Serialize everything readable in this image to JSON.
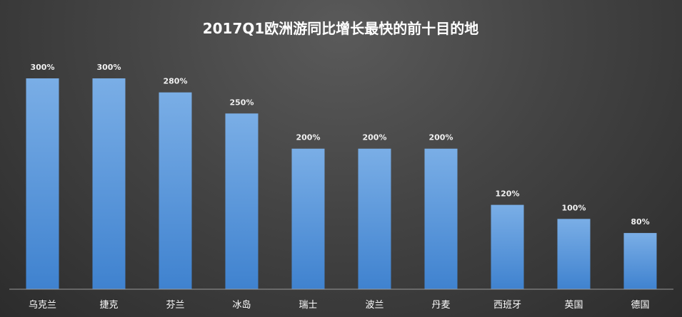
{
  "chart_data": {
    "type": "bar",
    "title": "2017Q1欧洲游同比增长最快的前十目的地",
    "categories": [
      "乌克兰",
      "捷克",
      "芬兰",
      "冰岛",
      "瑞士",
      "波兰",
      "丹麦",
      "西班牙",
      "英国",
      "德国"
    ],
    "values": [
      300,
      300,
      280,
      250,
      200,
      200,
      200,
      120,
      100,
      80
    ],
    "value_labels": [
      "300%",
      "300%",
      "280%",
      "250%",
      "200%",
      "200%",
      "200%",
      "120%",
      "100%",
      "80%"
    ],
    "ylim": [
      0,
      300
    ],
    "grid": false,
    "legend": "none",
    "colors": {
      "bar_top": "#7aaee6",
      "bar_bottom": "#3f82cf",
      "background": "#444444",
      "text": "#ffffff"
    }
  }
}
